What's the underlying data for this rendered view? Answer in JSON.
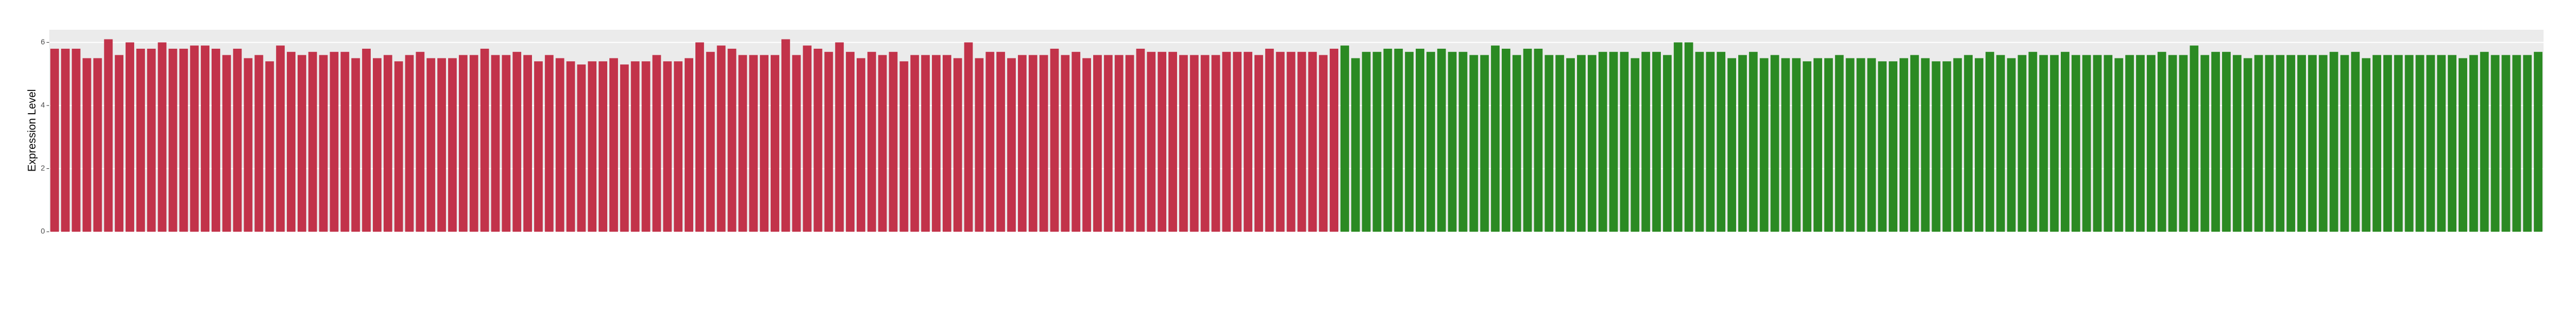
{
  "chart_data": {
    "type": "bar",
    "y_label": "Expression Level",
    "categories": [
      null,
      null,
      null,
      null,
      null,
      null,
      null,
      null,
      null,
      null,
      null,
      null,
      null,
      null,
      null,
      null,
      null,
      null,
      null,
      null,
      null,
      null,
      null,
      null,
      null,
      null,
      null,
      null,
      null,
      null,
      null,
      null,
      null,
      null,
      null,
      null,
      null,
      null,
      null,
      null,
      null,
      null,
      null,
      null,
      null,
      null,
      null,
      null,
      null,
      null,
      null,
      null,
      null,
      null,
      null,
      null,
      null,
      null,
      null,
      null,
      null,
      null,
      null,
      null,
      null,
      null,
      null,
      null,
      null,
      null,
      null,
      null,
      null,
      null,
      null,
      null,
      null,
      null,
      null,
      null,
      null,
      null,
      null,
      null,
      null,
      null,
      null,
      null,
      null,
      null,
      null,
      null,
      null,
      null,
      null,
      null,
      null,
      null,
      null,
      null,
      null,
      null,
      null,
      null,
      null,
      null,
      null,
      null,
      null,
      null,
      null,
      null,
      null,
      null,
      null,
      null,
      null,
      null,
      null,
      null,
      null,
      null,
      null,
      null,
      null,
      null,
      null,
      null,
      null,
      null,
      null,
      null,
      null,
      null,
      null,
      null,
      null,
      null,
      null,
      null,
      null,
      null,
      null,
      null,
      null,
      null,
      null,
      null,
      null,
      null,
      null,
      null,
      null,
      null,
      null,
      null,
      null,
      null,
      null,
      null,
      null,
      null,
      null,
      null,
      null,
      null,
      null,
      null,
      null,
      null,
      null,
      null,
      null,
      null,
      null,
      null,
      null,
      null,
      null,
      null,
      null,
      null,
      null,
      null,
      null,
      null,
      null,
      null,
      null,
      null,
      null,
      null,
      null,
      null,
      null,
      null,
      null,
      null,
      null,
      null,
      null,
      null,
      null,
      null,
      null,
      null,
      null,
      null,
      null,
      null,
      null,
      null,
      null,
      null,
      null,
      null,
      null,
      null,
      null,
      null,
      null,
      null,
      null,
      null,
      null,
      null,
      null,
      null,
      null,
      null,
      null,
      null
    ],
    "values": [
      5.8,
      5.8,
      5.8,
      5.5,
      5.5,
      6.1,
      5.6,
      6.0,
      5.8,
      5.8,
      6.0,
      5.8,
      5.8,
      5.9,
      5.9,
      5.8,
      5.6,
      5.8,
      5.5,
      5.6,
      5.4,
      5.9,
      5.7,
      5.6,
      5.7,
      5.6,
      5.7,
      5.7,
      5.5,
      5.8,
      5.5,
      5.6,
      5.4,
      5.6,
      5.7,
      5.5,
      5.5,
      5.5,
      5.6,
      5.6,
      5.8,
      5.6,
      5.6,
      5.7,
      5.6,
      5.4,
      5.6,
      5.5,
      5.4,
      5.3,
      5.4,
      5.4,
      5.5,
      5.3,
      5.4,
      5.4,
      5.6,
      5.4,
      5.4,
      5.5,
      6.0,
      5.7,
      5.9,
      5.8,
      5.6,
      5.6,
      5.6,
      5.6,
      6.1,
      5.6,
      5.9,
      5.8,
      5.7,
      6.0,
      5.7,
      5.5,
      5.7,
      5.6,
      5.7,
      5.4,
      5.6,
      5.6,
      5.6,
      5.6,
      5.5,
      6.0,
      5.5,
      5.7,
      5.7,
      5.5,
      5.6,
      5.6,
      5.6,
      5.8,
      5.6,
      5.7,
      5.5,
      5.6,
      5.6,
      5.6,
      5.6,
      5.8,
      5.7,
      5.7,
      5.7,
      5.6,
      5.6,
      5.6,
      5.6,
      5.7,
      5.7,
      5.7,
      5.6,
      5.8,
      5.7,
      5.7,
      5.7,
      5.7,
      5.6,
      5.8,
      5.9,
      5.5,
      5.7,
      5.7,
      5.8,
      5.8,
      5.7,
      5.8,
      5.7,
      5.8,
      5.7,
      5.7,
      5.6,
      5.6,
      5.9,
      5.8,
      5.6,
      5.8,
      5.8,
      5.6,
      5.6,
      5.5,
      5.6,
      5.6,
      5.7,
      5.7,
      5.7,
      5.5,
      5.7,
      5.7,
      5.6,
      6.0,
      6.0,
      5.7,
      5.7,
      5.7,
      5.5,
      5.6,
      5.7,
      5.5,
      5.6,
      5.5,
      5.5,
      5.4,
      5.5,
      5.5,
      5.6,
      5.5,
      5.5,
      5.5,
      5.4,
      5.4,
      5.5,
      5.6,
      5.5,
      5.4,
      5.4,
      5.5,
      5.6,
      5.5,
      5.7,
      5.6,
      5.5,
      5.6,
      5.7,
      5.6,
      5.6,
      5.7,
      5.6,
      5.6,
      5.6,
      5.6,
      5.5,
      5.6,
      5.6,
      5.6,
      5.7,
      5.6,
      5.6,
      5.9,
      5.6,
      5.7,
      5.7,
      5.6,
      5.5,
      5.6,
      5.6,
      5.6,
      5.6,
      5.6,
      5.6,
      5.6,
      5.7,
      5.6,
      5.7,
      5.5,
      5.6,
      5.6,
      5.6,
      5.6,
      5.6,
      5.6,
      5.6,
      5.6,
      5.5,
      5.6,
      5.7,
      5.6,
      5.6,
      5.6,
      5.6,
      5.7
    ],
    "colors": [
      "#c2334a",
      "#c2334a",
      "#c2334a",
      "#c2334a",
      "#c2334a",
      "#c2334a",
      "#c2334a",
      "#c2334a",
      "#c2334a",
      "#c2334a",
      "#c2334a",
      "#c2334a",
      "#c2334a",
      "#c2334a",
      "#c2334a",
      "#c2334a",
      "#c2334a",
      "#c2334a",
      "#c2334a",
      "#c2334a",
      "#c2334a",
      "#c2334a",
      "#c2334a",
      "#c2334a",
      "#c2334a",
      "#c2334a",
      "#c2334a",
      "#c2334a",
      "#c2334a",
      "#c2334a",
      "#c2334a",
      "#c2334a",
      "#c2334a",
      "#c2334a",
      "#c2334a",
      "#c2334a",
      "#c2334a",
      "#c2334a",
      "#c2334a",
      "#c2334a",
      "#c2334a",
      "#c2334a",
      "#c2334a",
      "#c2334a",
      "#c2334a",
      "#c2334a",
      "#c2334a",
      "#c2334a",
      "#c2334a",
      "#c2334a",
      "#c2334a",
      "#c2334a",
      "#c2334a",
      "#c2334a",
      "#c2334a",
      "#c2334a",
      "#c2334a",
      "#c2334a",
      "#c2334a",
      "#c2334a",
      "#c2334a",
      "#c2334a",
      "#c2334a",
      "#c2334a",
      "#c2334a",
      "#c2334a",
      "#c2334a",
      "#c2334a",
      "#c2334a",
      "#c2334a",
      "#c2334a",
      "#c2334a",
      "#c2334a",
      "#c2334a",
      "#c2334a",
      "#c2334a",
      "#c2334a",
      "#c2334a",
      "#c2334a",
      "#c2334a",
      "#c2334a",
      "#c2334a",
      "#c2334a",
      "#c2334a",
      "#c2334a",
      "#c2334a",
      "#c2334a",
      "#c2334a",
      "#c2334a",
      "#c2334a",
      "#c2334a",
      "#c2334a",
      "#c2334a",
      "#c2334a",
      "#c2334a",
      "#c2334a",
      "#c2334a",
      "#c2334a",
      "#c2334a",
      "#c2334a",
      "#c2334a",
      "#c2334a",
      "#c2334a",
      "#c2334a",
      "#c2334a",
      "#c2334a",
      "#c2334a",
      "#c2334a",
      "#c2334a",
      "#c2334a",
      "#c2334a",
      "#c2334a",
      "#c2334a",
      "#c2334a",
      "#c2334a",
      "#c2334a",
      "#c2334a",
      "#c2334a",
      "#c2334a",
      "#c2334a",
      "#2b8a23",
      "#2b8a23",
      "#2b8a23",
      "#2b8a23",
      "#2b8a23",
      "#2b8a23",
      "#2b8a23",
      "#2b8a23",
      "#2b8a23",
      "#2b8a23",
      "#2b8a23",
      "#2b8a23",
      "#2b8a23",
      "#2b8a23",
      "#2b8a23",
      "#2b8a23",
      "#2b8a23",
      "#2b8a23",
      "#2b8a23",
      "#2b8a23",
      "#2b8a23",
      "#2b8a23",
      "#2b8a23",
      "#2b8a23",
      "#2b8a23",
      "#2b8a23",
      "#2b8a23",
      "#2b8a23",
      "#2b8a23",
      "#2b8a23",
      "#2b8a23",
      "#2b8a23",
      "#2b8a23",
      "#2b8a23",
      "#2b8a23",
      "#2b8a23",
      "#2b8a23",
      "#2b8a23",
      "#2b8a23",
      "#2b8a23",
      "#2b8a23",
      "#2b8a23",
      "#2b8a23",
      "#2b8a23",
      "#2b8a23",
      "#2b8a23",
      "#2b8a23",
      "#2b8a23",
      "#2b8a23",
      "#2b8a23",
      "#2b8a23",
      "#2b8a23",
      "#2b8a23",
      "#2b8a23",
      "#2b8a23",
      "#2b8a23",
      "#2b8a23",
      "#2b8a23",
      "#2b8a23",
      "#2b8a23",
      "#2b8a23",
      "#2b8a23",
      "#2b8a23",
      "#2b8a23",
      "#2b8a23",
      "#2b8a23",
      "#2b8a23",
      "#2b8a23",
      "#2b8a23",
      "#2b8a23",
      "#2b8a23",
      "#2b8a23",
      "#2b8a23",
      "#2b8a23",
      "#2b8a23",
      "#2b8a23",
      "#2b8a23",
      "#2b8a23",
      "#2b8a23",
      "#2b8a23",
      "#2b8a23",
      "#2b8a23",
      "#2b8a23",
      "#2b8a23",
      "#2b8a23",
      "#2b8a23",
      "#2b8a23",
      "#2b8a23",
      "#2b8a23",
      "#2b8a23",
      "#2b8a23",
      "#2b8a23",
      "#2b8a23",
      "#2b8a23",
      "#2b8a23",
      "#2b8a23",
      "#2b8a23",
      "#2b8a23",
      "#2b8a23",
      "#2b8a23",
      "#2b8a23",
      "#2b8a23",
      "#2b8a23",
      "#2b8a23",
      "#2b8a23",
      "#2b8a23",
      "#2b8a23",
      "#2b8a23",
      "#2b8a23",
      "#2b8a23",
      "#2b8a23",
      "#2b8a23"
    ],
    "ylim": [
      0,
      6.4
    ],
    "yticks": [
      0,
      2,
      4,
      6
    ],
    "grid": true
  }
}
